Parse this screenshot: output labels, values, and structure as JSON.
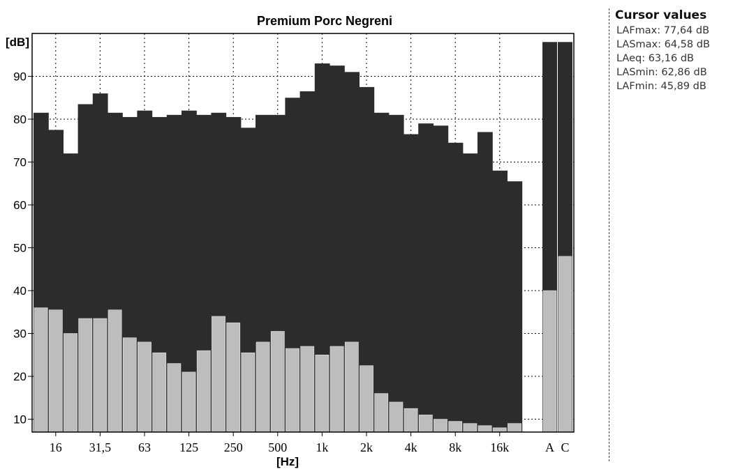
{
  "cursor_panel": {
    "title": "Cursor values",
    "rows": [
      "LAFmax: 77,64 dB",
      "LASmax: 64,58 dB",
      "LAeq: 63,16 dB",
      "LASmin: 62,86 dB",
      "LAFmin: 45,89 dB"
    ]
  },
  "colors": {
    "max_series": "#2c2c2c",
    "min_series": "#bdbdbd",
    "frame": "#000000",
    "background": "#ffffff"
  },
  "chart_data": {
    "type": "bar",
    "title": "Premium Porc Negreni",
    "ylabel": "[dB]",
    "xlabel": "[Hz]",
    "ylim": [
      7,
      100
    ],
    "yticks": [
      10,
      20,
      30,
      40,
      50,
      60,
      70,
      80,
      90
    ],
    "bands": [
      "12.5",
      "16",
      "20",
      "25",
      "31,5",
      "40",
      "50",
      "63",
      "80",
      "100",
      "125",
      "160",
      "200",
      "250",
      "315",
      "400",
      "500",
      "630",
      "800",
      "1k",
      "1.25k",
      "1.6k",
      "2k",
      "2.5k",
      "3.15k",
      "4k",
      "5k",
      "6.3k",
      "8k",
      "10k",
      "12.5k",
      "16k",
      "20k"
    ],
    "x_tick_labels": [
      {
        "band": 1,
        "label": "16"
      },
      {
        "band": 4,
        "label": "31,5"
      },
      {
        "band": 7,
        "label": "63"
      },
      {
        "band": 10,
        "label": "125"
      },
      {
        "band": 13,
        "label": "250"
      },
      {
        "band": 16,
        "label": "500"
      },
      {
        "band": 19,
        "label": "1k"
      },
      {
        "band": 22,
        "label": "2k"
      },
      {
        "band": 25,
        "label": "4k"
      },
      {
        "band": 28,
        "label": "8k"
      },
      {
        "band": 31,
        "label": "16k"
      }
    ],
    "weighted": [
      {
        "label": "A",
        "max": 98,
        "min": 40
      },
      {
        "label": "C",
        "max": 98,
        "min": 48
      }
    ],
    "series": [
      {
        "values": [
          81.5,
          77.5,
          72,
          83.5,
          86,
          81.5,
          80.5,
          82,
          80.5,
          81,
          82,
          81,
          81.5,
          80.5,
          78,
          81,
          81,
          85,
          86.5,
          93,
          92.5,
          91,
          87.5,
          81.5,
          81,
          76.5,
          79,
          78.5,
          74.5,
          72,
          77,
          68,
          65.5
        ]
      },
      {
        "values": [
          36,
          35.5,
          30,
          33.5,
          33.5,
          35.5,
          29,
          28,
          25.5,
          23,
          21,
          26,
          34,
          32.5,
          25.5,
          28,
          30.5,
          26.5,
          27,
          25,
          27,
          28,
          22.5,
          16,
          14,
          12.5,
          11,
          10,
          9.5,
          9,
          8.5,
          8,
          9
        ]
      }
    ]
  }
}
